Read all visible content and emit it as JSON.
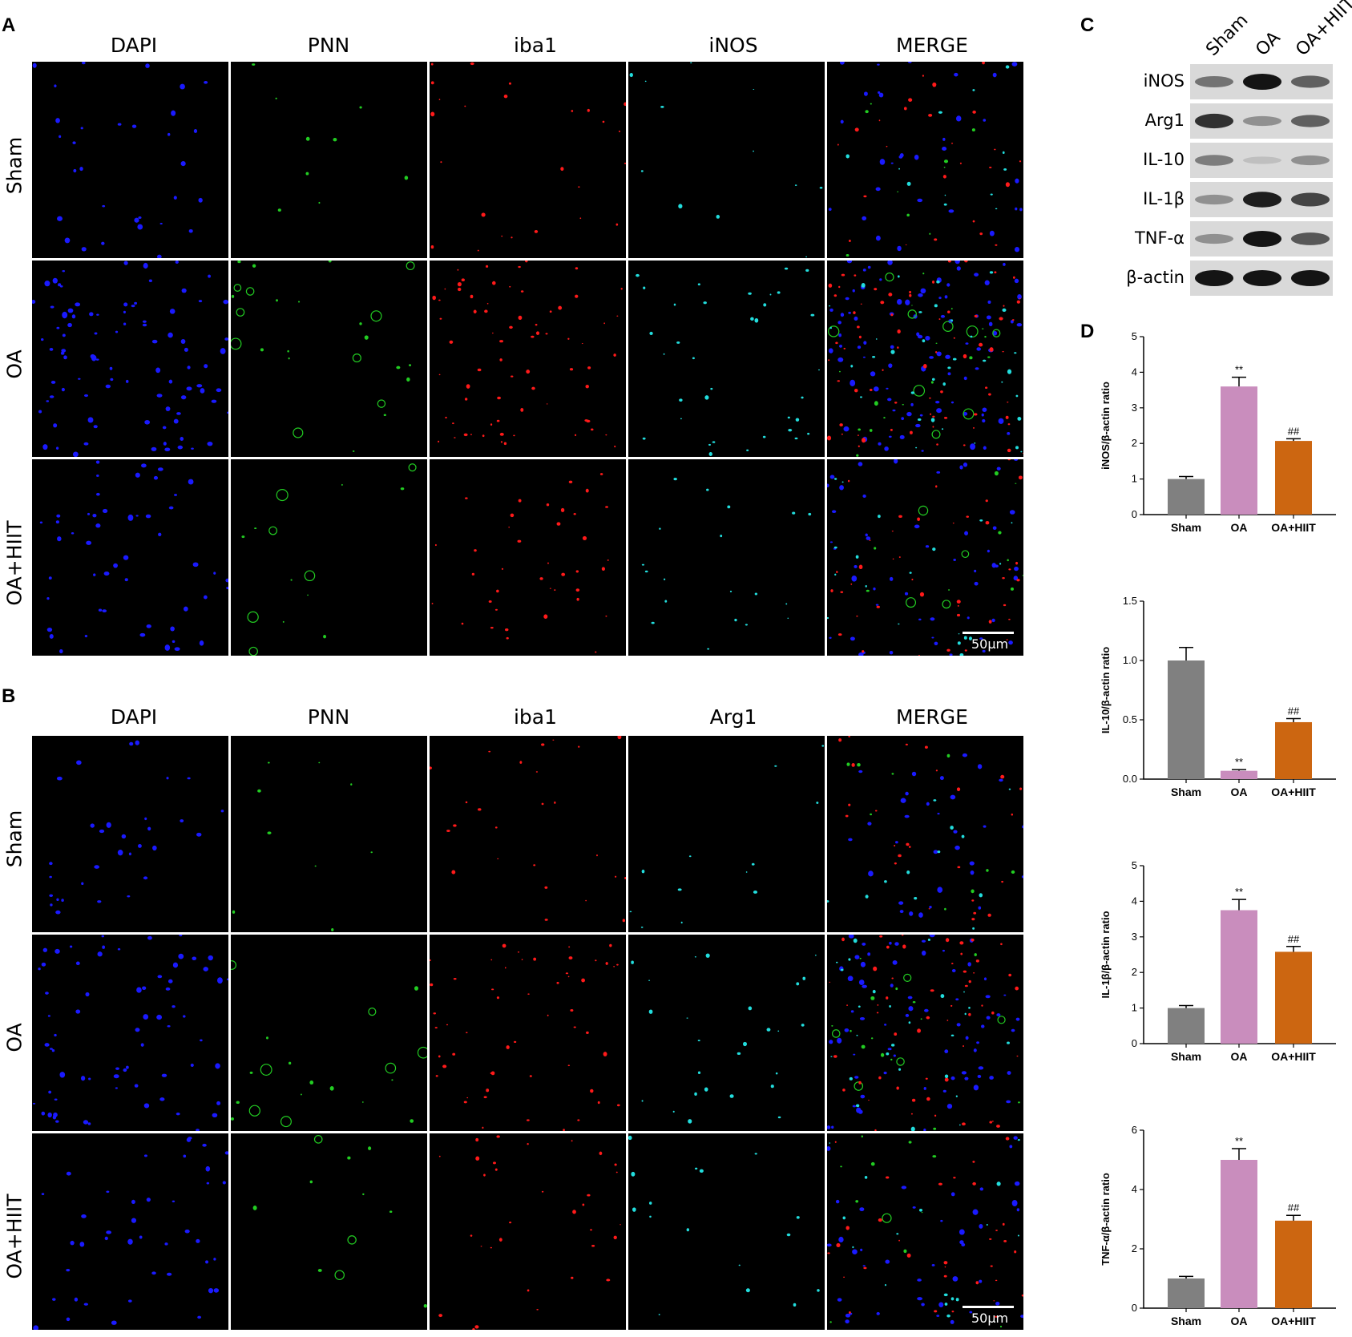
{
  "panels": {
    "A": {
      "letter": "A",
      "columns": [
        "DAPI",
        "PNN",
        "iba1",
        "iNOS",
        "MERGE"
      ],
      "rows": [
        "Sham",
        "OA",
        "OA+HIIT"
      ],
      "scale_bar": "50μm"
    },
    "B": {
      "letter": "B",
      "columns": [
        "DAPI",
        "PNN",
        "iba1",
        "Arg1",
        "MERGE"
      ],
      "rows": [
        "Sham",
        "OA",
        "OA+HIIT"
      ],
      "scale_bar": "50μm"
    },
    "C": {
      "letter": "C",
      "lanes": [
        "Sham",
        "OA",
        "OA+HIIT"
      ],
      "proteins": [
        "iNOS",
        "Arg1",
        "IL-10",
        "IL-1β",
        "TNF-α",
        "β-actin"
      ]
    },
    "D": {
      "letter": "D"
    }
  },
  "colors": {
    "DAPI": "#1a1aff",
    "PNN": "#22cc22",
    "iba1": "#ff1a1a",
    "iNOS": "#22dddd",
    "Arg1": "#22dddd",
    "bar_sham": "#808080",
    "bar_oa": "#c98dbd",
    "bar_oahiit": "#cc6611"
  },
  "chart_data": [
    {
      "type": "bar",
      "categories": [
        "Sham",
        "OA",
        "OA+HIIT"
      ],
      "values": [
        1.0,
        3.6,
        2.07
      ],
      "errors": [
        0.07,
        0.26,
        0.06
      ],
      "annotations": [
        "",
        "**",
        "##"
      ],
      "ylabel": "iNOS/β-actin ratio",
      "ylim": [
        0,
        5
      ],
      "yticks": [
        "0",
        "1",
        "2",
        "3",
        "4",
        "5"
      ]
    },
    {
      "type": "bar",
      "categories": [
        "Sham",
        "OA",
        "OA+HIIT"
      ],
      "values": [
        1.0,
        0.07,
        0.48
      ],
      "errors": [
        0.11,
        0.01,
        0.03
      ],
      "annotations": [
        "",
        "**",
        "##"
      ],
      "ylabel": "IL-10/β-actin ratio",
      "ylim": [
        0,
        1.5
      ],
      "yticks": [
        "0.0",
        "0.5",
        "1.0",
        "1.5"
      ]
    },
    {
      "type": "bar",
      "categories": [
        "Sham",
        "OA",
        "OA+HIIT"
      ],
      "values": [
        1.0,
        3.75,
        2.58
      ],
      "errors": [
        0.07,
        0.3,
        0.15
      ],
      "annotations": [
        "",
        "**",
        "##"
      ],
      "ylabel": "IL-1β/β-actin ratio",
      "ylim": [
        0,
        5
      ],
      "yticks": [
        "0",
        "1",
        "2",
        "3",
        "4",
        "5"
      ]
    },
    {
      "type": "bar",
      "categories": [
        "Sham",
        "OA",
        "OA+HIIT"
      ],
      "values": [
        1.0,
        5.0,
        2.95
      ],
      "errors": [
        0.07,
        0.38,
        0.18
      ],
      "annotations": [
        "",
        "**",
        "##"
      ],
      "ylabel": "TNF-α/β-actin ratio",
      "ylim": [
        0,
        6
      ],
      "yticks": [
        "0",
        "2",
        "4",
        "6"
      ]
    }
  ]
}
